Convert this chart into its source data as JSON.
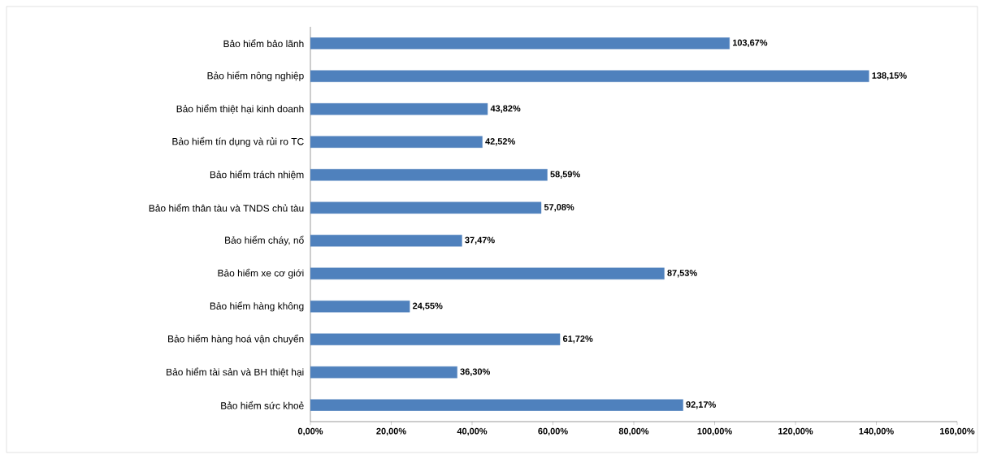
{
  "chart_data": {
    "type": "bar",
    "orientation": "horizontal",
    "categories": [
      "Bảo hiểm bảo lãnh",
      "Bảo hiểm nông nghiệp",
      "Bảo hiểm thiệt hại kinh doanh",
      "Bảo hiểm tín dụng và rủi ro TC",
      "Bảo hiểm trách  nhiệm",
      "Bảo hiểm thân tàu và TNDS chủ tàu",
      "Bảo hiểm cháy, nổ",
      "Bảo hiểm xe cơ giới",
      "Bảo hiểm hàng không",
      "Bảo hiểm hàng hoá vận chuyển",
      "Bảo hiểm tài sản và BH thiệt hại",
      "Bảo hiểm sức khoẻ"
    ],
    "values": [
      103.67,
      138.15,
      43.82,
      42.52,
      58.59,
      57.08,
      37.47,
      87.53,
      24.55,
      61.72,
      36.3,
      92.17
    ],
    "value_labels": [
      "103,67%",
      "138,15%",
      "43,82%",
      "42,52%",
      "58,59%",
      "57,08%",
      "37,47%",
      "87,53%",
      "24,55%",
      "61,72%",
      "36,30%",
      "92,17%"
    ],
    "color": "#4f81bd",
    "xlim": [
      0,
      160
    ],
    "xticks": [
      {
        "value": 0,
        "label": "0,00%"
      },
      {
        "value": 20,
        "label": "20,00%"
      },
      {
        "value": 40,
        "label": "40,00%"
      },
      {
        "value": 60,
        "label": "60,00%"
      },
      {
        "value": 80,
        "label": "80,00%"
      },
      {
        "value": 100,
        "label": "100,00%"
      },
      {
        "value": 120,
        "label": "120,00%"
      },
      {
        "value": 140,
        "label": "140,00%"
      },
      {
        "value": 160,
        "label": "160,00%"
      }
    ],
    "grid": false
  }
}
